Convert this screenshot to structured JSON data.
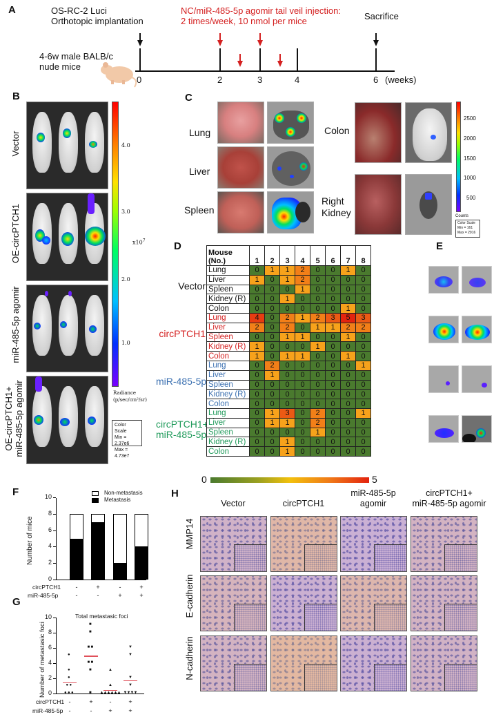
{
  "panelA": {
    "letter": "A",
    "implant_line1": "OS-RC-2 Luci",
    "implant_line2": "Orthotopic implantation",
    "injection_line1": "NC/miR-485-5p agomir tail veil injection:",
    "injection_line2": "2 times/week, 10 nmol per mice",
    "sacrifice": "Sacrifice",
    "mice_line1": "4-6w male BALB/c",
    "mice_line2": "nude mice",
    "ticks": [
      "0",
      "2",
      "3",
      "4",
      "6"
    ],
    "unit": "(weeks)",
    "colors": {
      "injection": "#d42020",
      "arrow_black": "#111111"
    }
  },
  "panelB": {
    "letter": "B",
    "groups": [
      "Vector",
      "OE-circPTCH1",
      "miR-485-5p agomir",
      "OE-circPTCH1+",
      "miR-485-5p agomir"
    ],
    "colorbar_ticks": [
      "4.0",
      "3.0",
      "2.0",
      "1.0"
    ],
    "colorbar_exponent": "x10",
    "colorbar_exp_power": "7",
    "radiance_label1": "Radiance",
    "radiance_label2": "(p/sec/cm²/sr)",
    "scale_title": "Color Scale",
    "scale_min": "Min = 2.37e6",
    "scale_max": "Max = 4.73e7"
  },
  "panelC": {
    "letter": "C",
    "organs_left": [
      "Lung",
      "Liver",
      "Spleen"
    ],
    "organs_right": [
      "Colon",
      "Right",
      "Kidney"
    ],
    "colorbar_ticks": [
      "2500",
      "2000",
      "1500",
      "1000",
      "500"
    ],
    "counts_label": "Counts",
    "scale_title": "Color Scale",
    "scale_min": "Min = 161",
    "scale_max": "Max = 2916"
  },
  "panelD": {
    "letter": "D",
    "header_line1": "Mouse",
    "header_line2": "(No.)",
    "mice": [
      "1",
      "2",
      "3",
      "4",
      "5",
      "6",
      "7",
      "8"
    ],
    "groups": [
      {
        "name": "Vector",
        "color": "#111111",
        "rows": [
          {
            "organ": "Lung",
            "values": [
              0,
              1,
              1,
              2,
              0,
              0,
              1,
              0
            ]
          },
          {
            "organ": "Liver",
            "values": [
              1,
              0,
              1,
              2,
              0,
              0,
              0,
              0
            ]
          },
          {
            "organ": "Spleen",
            "values": [
              0,
              0,
              0,
              1,
              0,
              0,
              0,
              0
            ]
          },
          {
            "organ": "Kidney (R)",
            "values": [
              0,
              0,
              1,
              0,
              0,
              0,
              0,
              0
            ]
          },
          {
            "organ": "Colon",
            "values": [
              0,
              0,
              0,
              0,
              0,
              0,
              1,
              0
            ]
          }
        ]
      },
      {
        "name": "circPTCH1",
        "color": "#d42020",
        "rows": [
          {
            "organ": "Lung",
            "values": [
              4,
              0,
              2,
              1,
              2,
              3,
              5,
              3
            ]
          },
          {
            "organ": "Liver",
            "values": [
              2,
              0,
              2,
              0,
              1,
              1,
              2,
              2
            ]
          },
          {
            "organ": "Spleen",
            "values": [
              0,
              0,
              1,
              1,
              0,
              0,
              1,
              0
            ]
          },
          {
            "organ": "Kidney (R)",
            "values": [
              1,
              0,
              0,
              0,
              1,
              0,
              0,
              0
            ]
          },
          {
            "organ": "Colon",
            "values": [
              1,
              0,
              1,
              1,
              0,
              0,
              1,
              0
            ]
          }
        ]
      },
      {
        "name": "miR-485-5p",
        "color": "#3a6fb0",
        "rows": [
          {
            "organ": "Lung",
            "values": [
              0,
              2,
              0,
              0,
              0,
              0,
              0,
              1
            ]
          },
          {
            "organ": "Liver",
            "values": [
              0,
              1,
              0,
              0,
              0,
              0,
              0,
              0
            ]
          },
          {
            "organ": "Spleen",
            "values": [
              0,
              0,
              0,
              0,
              0,
              0,
              0,
              0
            ]
          },
          {
            "organ": "Kidney (R)",
            "values": [
              0,
              0,
              0,
              0,
              0,
              0,
              0,
              0
            ]
          },
          {
            "organ": "Colon",
            "values": [
              0,
              0,
              0,
              0,
              0,
              0,
              0,
              0
            ]
          }
        ]
      },
      {
        "name": "circPTCH1+\nmiR-485-5p",
        "name_line1": "circPTCH1+",
        "name_line2": "miR-485-5p",
        "color": "#1f9a5a",
        "rows": [
          {
            "organ": "Lung",
            "values": [
              0,
              1,
              3,
              0,
              2,
              0,
              0,
              1
            ]
          },
          {
            "organ": "Liver",
            "values": [
              0,
              1,
              1,
              0,
              2,
              0,
              0,
              0
            ]
          },
          {
            "organ": "Spleen",
            "values": [
              0,
              0,
              0,
              0,
              1,
              0,
              0,
              0
            ]
          },
          {
            "organ": "Kidney (R)",
            "values": [
              0,
              0,
              1,
              0,
              0,
              0,
              0,
              0
            ]
          },
          {
            "organ": "Colon",
            "values": [
              0,
              0,
              1,
              0,
              0,
              0,
              0,
              0
            ]
          }
        ]
      }
    ],
    "scale_min": "0",
    "scale_max": "5"
  },
  "panelE": {
    "letter": "E"
  },
  "panelF": {
    "letter": "F"
  },
  "panelG": {
    "letter": "G"
  },
  "panelH": {
    "letter": "H",
    "columns": [
      {
        "line1": "Vector",
        "line2": ""
      },
      {
        "line1": "circPTCH1",
        "line2": ""
      },
      {
        "line1": "miR-485-5p",
        "line2": "agomir"
      },
      {
        "line1": "circPTCH1+",
        "line2": "miR-485-5p agomir"
      }
    ],
    "rows": [
      "MMP14",
      "E-cadherin",
      "N-cadherin"
    ]
  },
  "chart_data": [
    {
      "id": "F",
      "type": "bar",
      "stacked": true,
      "title": "",
      "ylabel": "Number of mice",
      "ylim": [
        0,
        10
      ],
      "yticks": [
        "0",
        "2",
        "4",
        "6",
        "8",
        "10"
      ],
      "categories": [
        "Vector",
        "circPTCH1",
        "miR-485-5p",
        "circPTCH1+miR-485-5p"
      ],
      "condition_rows": [
        {
          "label": "circPTCH1",
          "marks": [
            "-",
            "+",
            "-",
            "+"
          ]
        },
        {
          "label": "miR-485-5p",
          "marks": [
            "-",
            "-",
            "+",
            "+"
          ]
        }
      ],
      "series": [
        {
          "name": "Metastasis",
          "color": "#000000",
          "values": [
            5,
            7,
            2,
            4
          ]
        },
        {
          "name": "Non-metastasis",
          "color": "#ffffff",
          "values": [
            3,
            1,
            6,
            4
          ]
        }
      ],
      "legend": [
        "Non-metastasis",
        "Metastasis"
      ],
      "legend_position": "top-right"
    },
    {
      "id": "G",
      "type": "scatter",
      "title": "Total metastasic foci",
      "ylabel": "Number of metastasic foci",
      "ylim": [
        0,
        10
      ],
      "yticks": [
        "0",
        "2",
        "4",
        "6",
        "8",
        "10"
      ],
      "categories": [
        "Vector",
        "circPTCH1",
        "miR-485-5p",
        "circPTCH1+miR-485-5p"
      ],
      "condition_rows": [
        {
          "label": "circPTCH1",
          "marks": [
            "-",
            "+",
            "-",
            "+"
          ]
        },
        {
          "label": "miR-485-5p",
          "marks": [
            "-",
            "-",
            "+",
            "+"
          ]
        }
      ],
      "series": [
        {
          "name": "Vector",
          "marker": "circle",
          "values": [
            5,
            3,
            2,
            1,
            1,
            0,
            0,
            0
          ]
        },
        {
          "name": "circPTCH1",
          "marker": "square",
          "values": [
            9,
            8,
            6,
            6,
            4,
            4,
            3,
            0
          ]
        },
        {
          "name": "miR-485-5p",
          "marker": "triangle-up",
          "values": [
            3,
            1,
            0,
            0,
            0,
            0,
            0,
            0
          ]
        },
        {
          "name": "circPTCH1+miR-485-5p",
          "marker": "triangle-down",
          "values": [
            6,
            5,
            2,
            1,
            0,
            0,
            0,
            0
          ]
        }
      ],
      "means": [
        1.5,
        5.0,
        0.5,
        1.75
      ],
      "mean_color": "#e0505a"
    }
  ]
}
